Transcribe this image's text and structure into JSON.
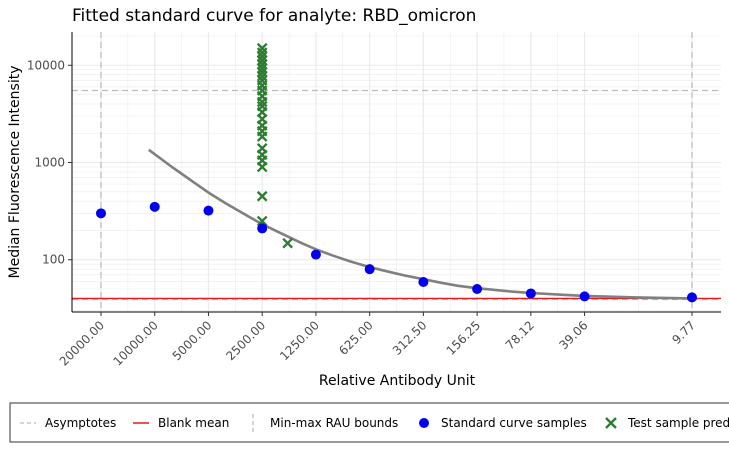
{
  "chart_data": {
    "type": "scatter",
    "title": "Fitted standard curve for analyte: RBD_omicron",
    "xlabel": "Relative Antibody Unit",
    "ylabel": "Median Fluorescence Intensity",
    "y_scale": "log",
    "x_scale": "log, reversed",
    "y_ticks": [
      100,
      1000,
      10000
    ],
    "y_tick_labels": [
      "100",
      "1000",
      "10000"
    ],
    "x_ticks": [
      20000,
      10000,
      5000,
      2500,
      1250,
      625,
      312.5,
      156.25,
      78.12,
      39.06,
      9.77
    ],
    "x_tick_labels": [
      "20000.00",
      "10000.00",
      "5000.00",
      "2500.00",
      "1250.00",
      "625.00",
      "312.50",
      "156.25",
      "78.12",
      "39.06",
      "9.77"
    ],
    "xlim": [
      9.77,
      20000
    ],
    "ylim": [
      29,
      22000
    ],
    "grid": true,
    "legend_position": "bottom",
    "asymptotes": [
      5500,
      39
    ],
    "blank_mean": 40,
    "rau_bounds": [
      20000,
      9.77
    ],
    "fitted_curve": {
      "x": [
        10800,
        8000,
        6000,
        5000,
        4000,
        3000,
        2500,
        2000,
        1500,
        1250,
        1000,
        800,
        625,
        500,
        400,
        312.5,
        250,
        200,
        156.25,
        100,
        78.12,
        50,
        39.06,
        20,
        9.77
      ],
      "y": [
        1350,
        900,
        620,
        490,
        380,
        280,
        232,
        190,
        148,
        128,
        110,
        96,
        84,
        76,
        69,
        63,
        58,
        54,
        51,
        47,
        45.5,
        43.5,
        42.5,
        41,
        40
      ]
    },
    "series": [
      {
        "name": "Standard curve samples",
        "color": "#0000ee",
        "x": [
          20000,
          10000,
          5000,
          2500,
          1250,
          625,
          312.5,
          156.25,
          78.12,
          39.06,
          9.77
        ],
        "y": [
          300,
          350,
          320,
          210,
          113,
          80,
          59,
          50,
          45,
          42,
          41
        ]
      },
      {
        "name": "Test sample predictions",
        "color": "#2e7d32",
        "x": [
          1800,
          2500,
          2500,
          2500,
          2500,
          2500,
          2500,
          2500,
          2500,
          2500,
          2500,
          2500,
          2500,
          2500,
          2500,
          2500,
          2500,
          2500,
          2500,
          2500,
          2500,
          2500,
          2500,
          2500,
          2500,
          2500
        ],
        "y": [
          148,
          250,
          450,
          900,
          1050,
          1200,
          1400,
          1850,
          2100,
          2400,
          2800,
          3300,
          3800,
          4200,
          4800,
          5500,
          6200,
          7000,
          7700,
          8500,
          9300,
          10200,
          11200,
          12300,
          13500,
          15000
        ]
      }
    ],
    "legend": [
      {
        "label": "Asymptotes",
        "kind": "dashed-h",
        "color": "#bbbbbb"
      },
      {
        "label": "Blank mean",
        "kind": "line",
        "color": "#e41a1c"
      },
      {
        "label": "Min-max RAU bounds",
        "kind": "dashed-v",
        "color": "#bbbbbb"
      },
      {
        "label": "Standard curve samples",
        "kind": "dot",
        "color": "#0000ee"
      },
      {
        "label": "Test sample predictions",
        "kind": "cross",
        "color": "#2e7d32"
      }
    ],
    "colors": {
      "curve": "#808080",
      "grid": "#ebebeb",
      "axis": "#000000"
    }
  }
}
